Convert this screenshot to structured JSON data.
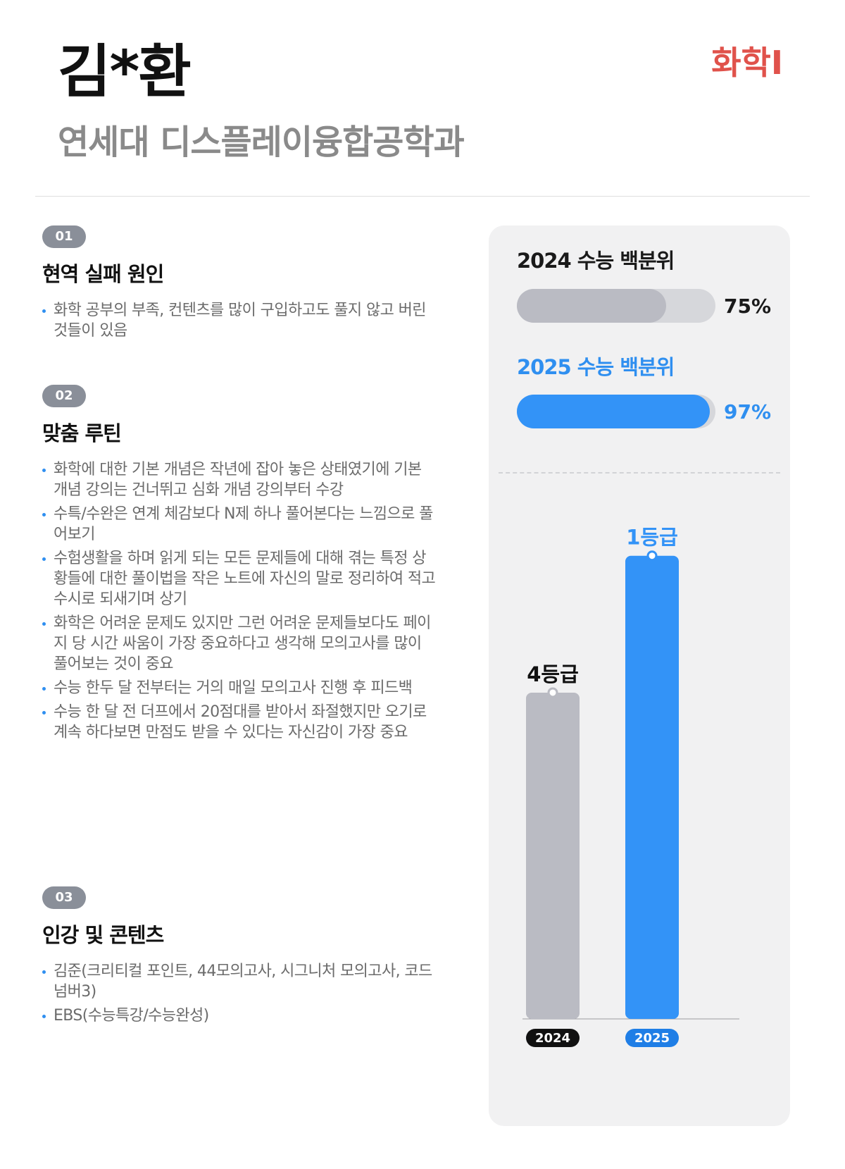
{
  "header": {
    "name": "김*환",
    "school": "연세대 디스플레이융합공학과",
    "subject": "화학I"
  },
  "sections": [
    {
      "number": "01",
      "title": "현역 실패 원인",
      "bullets": [
        "화학 공부의 부족, 컨텐츠를 많이 구입하고도 풀지 않고 버린 것들이 있음"
      ]
    },
    {
      "number": "02",
      "title": "맞춤 루틴",
      "bullets": [
        "화학에 대한 기본 개념은 작년에 잡아 놓은 상태였기에 기본 개념 강의는 건너뛰고 심화 개념 강의부터 수강",
        "수특/수완은 연계 체감보다 N제 하나 풀어본다는 느낌으로 풀어보기",
        "수험생활을 하며 읽게 되는 모든 문제들에 대해 겪는 특정 상황들에 대한 풀이법을 작은 노트에 자신의 말로 정리하여 적고 수시로 되새기며 상기",
        "화학은 어려운 문제도 있지만 그런 어려운 문제들보다도 페이지 당 시간 싸움이 가장 중요하다고 생각해 모의고사를 많이 풀어보는 것이 중요",
        "수능 한두 달 전부터는 거의 매일 모의고사 진행 후 피드백",
        "수능 한 달 전 더프에서 20점대를 받아서 좌절했지만 오기로 계속 하다보면 만점도 받을 수 있다는 자신감이 가장 중요"
      ]
    },
    {
      "number": "03",
      "title": "인강 및 콘텐츠",
      "bullets": [
        "김준(크리티컬 포인트, 44모의고사, 시그니처 모의고사, 코드넘버3)",
        "EBS(수능특강/수능완성)"
      ]
    }
  ],
  "percentiles": {
    "y2024": {
      "label": "2024 수능 백분위",
      "value": 75,
      "value_text": "75%"
    },
    "y2025": {
      "label": "2025 수능 백분위",
      "value": 97,
      "value_text": "97%"
    }
  },
  "colors": {
    "accent_blue": "#3393f7",
    "grey_bar": "#babbc3",
    "subject_red": "#e0524b",
    "badge_grey": "#8a8f99",
    "label_2025": "#2f8ff0"
  },
  "chart_data": {
    "type": "bar",
    "categories": [
      "2024",
      "2025"
    ],
    "values": [
      4,
      1
    ],
    "data_labels": [
      "4등급",
      "1등급"
    ],
    "bar_colors": [
      "#babbc3",
      "#3393f7"
    ],
    "axis_pill_colors": [
      "#111111",
      "#1f7ee6"
    ],
    "note": "grade bars: lower grade number = taller bar (1등급 best, 9등급 worst)",
    "ylim": [
      9,
      0
    ]
  }
}
